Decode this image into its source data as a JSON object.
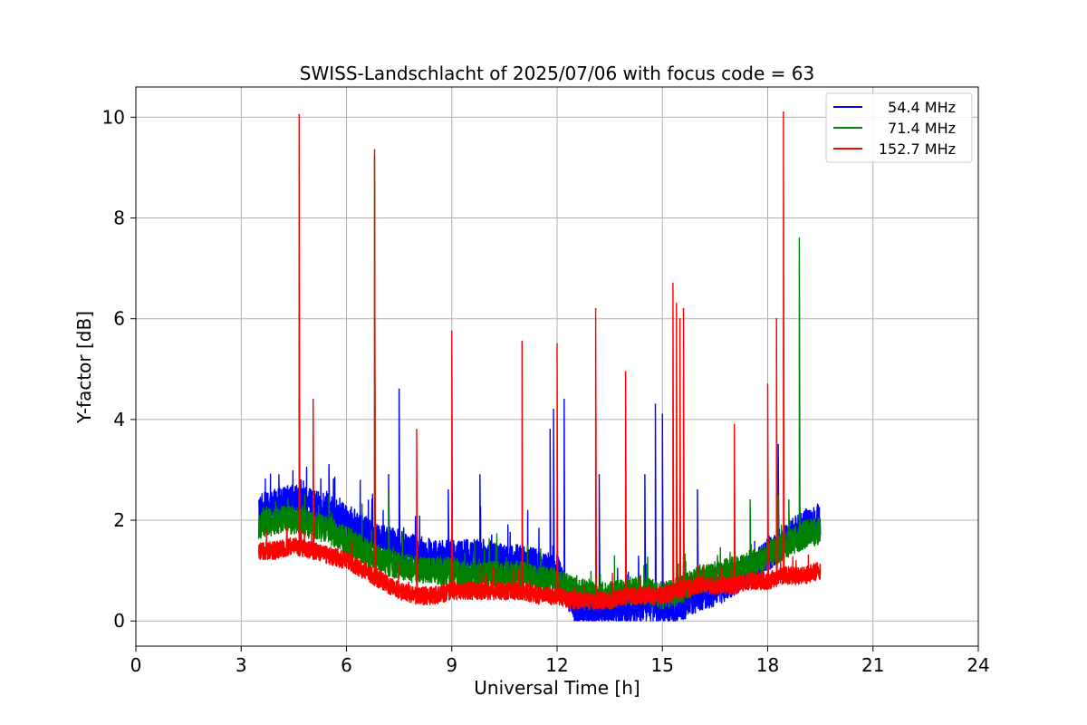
{
  "chart_data": {
    "type": "line",
    "title": "SWISS-Landschlacht of 2025/07/06 with focus code = 63",
    "xlabel": "Universal Time [h]",
    "ylabel": "Y-factor [dB]",
    "xlim": [
      0,
      24
    ],
    "ylim": [
      -0.5,
      10.6
    ],
    "x_ticks": [
      0,
      3,
      6,
      9,
      12,
      15,
      18,
      21,
      24
    ],
    "y_ticks": [
      0,
      2,
      4,
      6,
      8,
      10
    ],
    "grid": true,
    "legend_position": "top-right",
    "series": [
      {
        "name": "54.4 MHz",
        "color": "#0000ff",
        "x": [
          3.5,
          4.0,
          4.5,
          5.0,
          5.5,
          6.0,
          6.5,
          7.0,
          7.5,
          8.0,
          8.5,
          9.0,
          9.5,
          10.0,
          10.5,
          11.0,
          11.5,
          12.0,
          12.5,
          13.0,
          13.5,
          14.0,
          14.5,
          15.0,
          15.5,
          16.0,
          16.5,
          17.0,
          17.5,
          18.0,
          18.5,
          19.0,
          19.5
        ],
        "values": [
          2.2,
          2.3,
          2.4,
          2.3,
          2.2,
          2.0,
          1.8,
          1.6,
          1.5,
          1.4,
          1.3,
          1.3,
          1.3,
          1.3,
          1.2,
          1.2,
          1.1,
          1.0,
          0.2,
          0.2,
          0.2,
          0.3,
          0.3,
          0.3,
          0.3,
          0.5,
          0.6,
          0.8,
          1.0,
          1.3,
          1.6,
          1.9,
          2.0
        ],
        "spikes": [
          {
            "x": 4.7,
            "y": 2.8
          },
          {
            "x": 5.5,
            "y": 3.1
          },
          {
            "x": 7.2,
            "y": 2.9
          },
          {
            "x": 7.5,
            "y": 4.6
          },
          {
            "x": 8.9,
            "y": 2.6
          },
          {
            "x": 9.8,
            "y": 2.9
          },
          {
            "x": 11.8,
            "y": 3.8
          },
          {
            "x": 11.9,
            "y": 4.2
          },
          {
            "x": 12.2,
            "y": 4.4
          },
          {
            "x": 13.2,
            "y": 2.9
          },
          {
            "x": 14.5,
            "y": 2.9
          },
          {
            "x": 14.8,
            "y": 4.3
          },
          {
            "x": 15.0,
            "y": 4.1
          },
          {
            "x": 16.0,
            "y": 2.6
          },
          {
            "x": 18.3,
            "y": 3.5
          }
        ]
      },
      {
        "name": "71.4 MHz",
        "color": "#008000",
        "x": [
          3.5,
          4.0,
          4.5,
          5.0,
          5.5,
          6.0,
          6.5,
          7.0,
          7.5,
          8.0,
          8.5,
          9.0,
          9.5,
          10.0,
          10.5,
          11.0,
          11.5,
          12.0,
          12.5,
          13.0,
          13.5,
          14.0,
          14.5,
          15.0,
          15.5,
          16.0,
          16.5,
          17.0,
          17.5,
          18.0,
          18.5,
          19.0,
          19.5
        ],
        "values": [
          1.9,
          2.0,
          2.0,
          1.9,
          1.8,
          1.6,
          1.4,
          1.2,
          1.1,
          1.0,
          1.0,
          1.0,
          0.9,
          0.9,
          0.9,
          0.9,
          0.8,
          0.8,
          0.6,
          0.5,
          0.5,
          0.6,
          0.6,
          0.5,
          0.6,
          0.8,
          0.9,
          1.0,
          1.1,
          1.3,
          1.5,
          1.7,
          1.8
        ],
        "spikes": [
          {
            "x": 5.5,
            "y": 2.5
          },
          {
            "x": 6.8,
            "y": 9.2
          },
          {
            "x": 7.2,
            "y": 2.6
          },
          {
            "x": 17.5,
            "y": 2.4
          },
          {
            "x": 18.3,
            "y": 2.5
          },
          {
            "x": 18.6,
            "y": 2.4
          },
          {
            "x": 18.9,
            "y": 7.6
          }
        ]
      },
      {
        "name": "152.7 MHz",
        "color": "#ff0000",
        "x": [
          3.5,
          4.0,
          4.5,
          5.0,
          5.5,
          6.0,
          6.5,
          7.0,
          7.5,
          8.0,
          8.5,
          9.0,
          9.5,
          10.0,
          10.5,
          11.0,
          11.5,
          12.0,
          12.5,
          13.0,
          13.5,
          14.0,
          14.5,
          15.0,
          15.5,
          16.0,
          16.5,
          17.0,
          17.5,
          18.0,
          18.5,
          19.0,
          19.5
        ],
        "values": [
          1.4,
          1.4,
          1.5,
          1.4,
          1.3,
          1.2,
          1.0,
          0.8,
          0.6,
          0.5,
          0.5,
          0.6,
          0.6,
          0.6,
          0.6,
          0.6,
          0.5,
          0.5,
          0.4,
          0.4,
          0.4,
          0.5,
          0.5,
          0.5,
          0.6,
          0.7,
          0.7,
          0.7,
          0.8,
          0.8,
          0.9,
          0.9,
          1.0
        ],
        "spikes": [
          {
            "x": 4.65,
            "y": 10.05
          },
          {
            "x": 5.05,
            "y": 4.4
          },
          {
            "x": 6.8,
            "y": 9.35
          },
          {
            "x": 8.0,
            "y": 3.8
          },
          {
            "x": 9.0,
            "y": 5.75
          },
          {
            "x": 11.0,
            "y": 5.55
          },
          {
            "x": 12.0,
            "y": 5.5
          },
          {
            "x": 13.1,
            "y": 6.2
          },
          {
            "x": 13.95,
            "y": 4.95
          },
          {
            "x": 15.3,
            "y": 6.7
          },
          {
            "x": 15.4,
            "y": 6.3
          },
          {
            "x": 15.5,
            "y": 6.0
          },
          {
            "x": 15.6,
            "y": 6.2
          },
          {
            "x": 17.05,
            "y": 3.9
          },
          {
            "x": 18.0,
            "y": 4.7
          },
          {
            "x": 18.25,
            "y": 6.0
          },
          {
            "x": 18.45,
            "y": 10.1
          }
        ]
      }
    ]
  }
}
